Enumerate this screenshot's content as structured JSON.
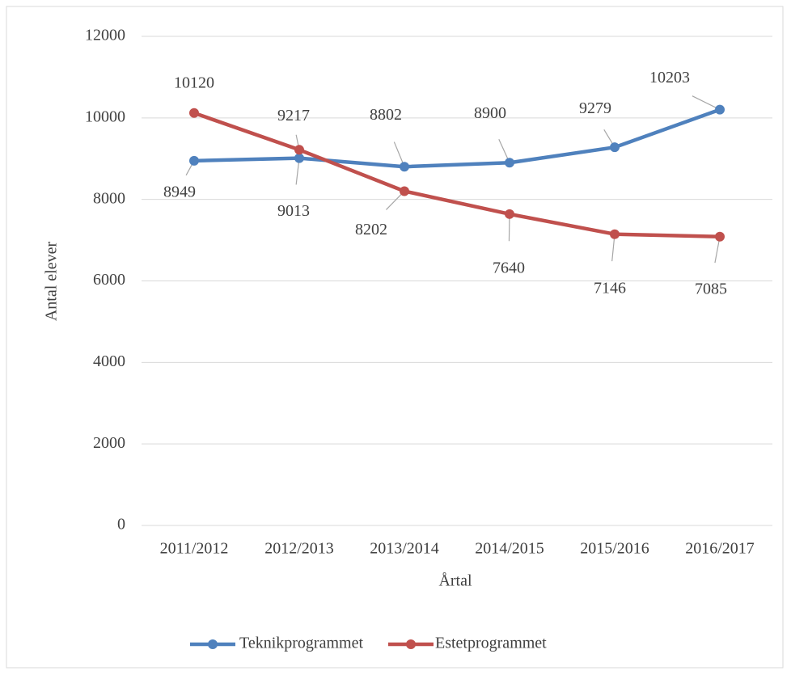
{
  "chart_data": {
    "type": "line",
    "categories": [
      "2011/2012",
      "2012/2013",
      "2013/2014",
      "2014/2015",
      "2015/2016",
      "2016/2017"
    ],
    "series": [
      {
        "name": "Teknikprogrammet",
        "color": "#4f81bd",
        "values": [
          8949,
          9013,
          8802,
          8900,
          9279,
          10203
        ]
      },
      {
        "name": "Estetprogrammet",
        "color": "#c0504d",
        "values": [
          10120,
          9217,
          8202,
          7640,
          7146,
          7085
        ]
      }
    ],
    "xlabel": "Årtal",
    "ylabel": "Antal elever",
    "ylim": [
      0,
      12000
    ],
    "yticks": [
      0,
      2000,
      4000,
      6000,
      8000,
      10000,
      12000
    ],
    "grid": true,
    "legend": "bottom"
  }
}
